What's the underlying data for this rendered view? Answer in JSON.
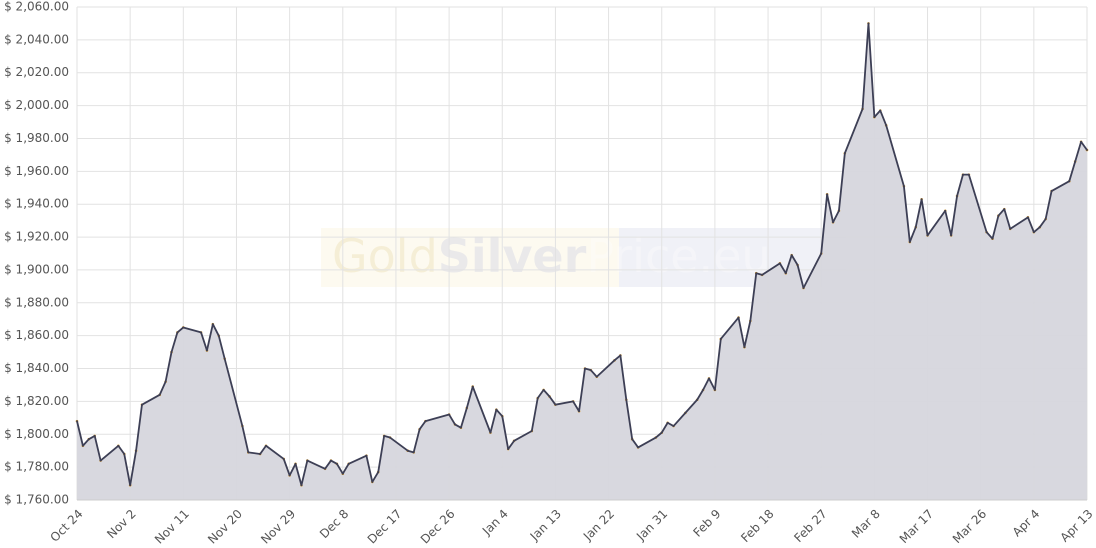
{
  "chart_data": {
    "type": "area",
    "watermark": [
      "Gold",
      "Silver",
      "Price.eu"
    ],
    "categories": [
      "Oct 24",
      null,
      null,
      null,
      null,
      null,
      null,
      null,
      null,
      "Nov 2",
      null,
      null,
      null,
      null,
      null,
      null,
      null,
      null,
      "Nov 11",
      null,
      null,
      null,
      null,
      null,
      null,
      null,
      null,
      "Nov 20",
      null,
      null,
      null,
      null,
      null,
      null,
      null,
      null,
      "Nov 29",
      null,
      null,
      null,
      null,
      null,
      null,
      null,
      null,
      "Dec 8",
      null,
      null,
      null,
      null,
      null,
      null,
      null,
      null,
      "Dec 17",
      null,
      null,
      null,
      null,
      null,
      null,
      null,
      null,
      "Dec 26",
      null,
      null,
      null,
      null,
      null,
      null,
      null,
      null,
      "Jan 4",
      null,
      null,
      null,
      null,
      null,
      null,
      null,
      null,
      "Jan 13",
      null,
      null,
      null,
      null,
      null,
      null,
      null,
      null,
      "Jan 22",
      null,
      null,
      null,
      null,
      null,
      null,
      null,
      null,
      "Jan 31",
      null,
      null,
      null,
      null,
      null,
      null,
      null,
      null,
      "Feb 9",
      null,
      null,
      null,
      null,
      null,
      null,
      null,
      null,
      "Feb 18",
      null,
      null,
      null,
      null,
      null,
      null,
      null,
      null,
      "Feb 27",
      null,
      null,
      null,
      null,
      null,
      null,
      null,
      null,
      "Mar 8",
      null,
      null,
      null,
      null,
      null,
      null,
      null,
      null,
      "Mar 17",
      null,
      null,
      null,
      null,
      null,
      null,
      null,
      null,
      "Mar 26",
      null,
      null,
      null,
      null,
      null,
      null,
      null,
      null,
      "Apr 4",
      null,
      null,
      null,
      null,
      null,
      null,
      null,
      null,
      "Apr 13"
    ],
    "values": [
      1808,
      1793,
      1797,
      1799,
      1784,
      null,
      null,
      1793,
      1788,
      1769,
      1790,
      1818,
      null,
      null,
      1824,
      1832,
      1850,
      1862,
      1865,
      null,
      null,
      1862,
      1851,
      1867,
      1860,
      1846,
      null,
      null,
      1805,
      1789,
      null,
      1788,
      1793,
      null,
      null,
      1785,
      1775,
      1782,
      1769,
      1784,
      null,
      null,
      1779,
      1784,
      1782,
      1776,
      1782,
      null,
      null,
      1787,
      1771,
      1777,
      1799,
      1798,
      null,
      null,
      1790,
      1789,
      1803,
      1808,
      null,
      null,
      null,
      1812,
      1806,
      1804,
      1816,
      1829,
      null,
      null,
      1801,
      1815,
      1811,
      1791,
      1796,
      null,
      null,
      1802,
      1822,
      1827,
      1823,
      1818,
      null,
      null,
      1820,
      1814,
      1840,
      1839,
      1835,
      null,
      null,
      1845,
      1848,
      1821,
      1797,
      1792,
      null,
      null,
      1798,
      1801,
      1807,
      1805,
      null,
      1813,
      null,
      1821,
      1827,
      1834,
      1827,
      1858,
      null,
      null,
      1871,
      1853,
      1869,
      1898,
      1897,
      null,
      null,
      1904,
      1898,
      1909,
      1903,
      1889,
      null,
      null,
      1910,
      1946,
      1929,
      1936,
      1971,
      null,
      null,
      1998,
      2050,
      1993,
      1997,
      1988,
      null,
      null,
      1951,
      1917,
      1926,
      1943,
      1921,
      null,
      null,
      1936,
      1921,
      1945,
      1958,
      1958,
      null,
      null,
      1923,
      1919,
      1933,
      1937,
      1925,
      null,
      null,
      1932,
      1923,
      1926,
      1931,
      1948,
      null,
      null,
      1954,
      1966,
      1978,
      1973
    ],
    "connect_gaps": true,
    "color": "#3d3f55",
    "area_color": "#d6d6dd",
    "marker_color": "#d99a2b",
    "ylim": [
      1760,
      2060
    ],
    "yticks": [
      {
        "value": 1760,
        "label": "$ 1,760.00"
      },
      {
        "value": 1780,
        "label": "$ 1,780.00"
      },
      {
        "value": 1800,
        "label": "$ 1,800.00"
      },
      {
        "value": 1820,
        "label": "$ 1,820.00"
      },
      {
        "value": 1840,
        "label": "$ 1,840.00"
      },
      {
        "value": 1860,
        "label": "$ 1,860.00"
      },
      {
        "value": 1880,
        "label": "$ 1,880.00"
      },
      {
        "value": 1900,
        "label": "$ 1,900.00"
      },
      {
        "value": 1920,
        "label": "$ 1,920.00"
      },
      {
        "value": 1940,
        "label": "$ 1,940.00"
      },
      {
        "value": 1960,
        "label": "$ 1,960.00"
      },
      {
        "value": 1980,
        "label": "$ 1,980.00"
      },
      {
        "value": 2000,
        "label": "$ 2,000.00"
      },
      {
        "value": 2020,
        "label": "$ 2,020.00"
      },
      {
        "value": 2040,
        "label": "$ 2,040.00"
      },
      {
        "value": 2060,
        "label": "$ 2,060.00"
      }
    ],
    "grid": true
  }
}
